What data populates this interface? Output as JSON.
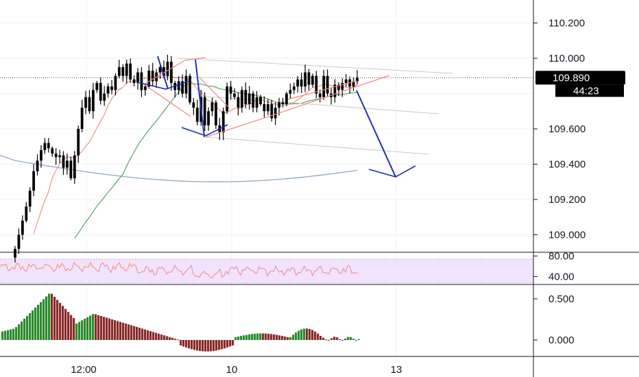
{
  "colors": {
    "background": "#ffffff",
    "grid": "#eef0f3",
    "axis_line": "#131722",
    "candle": "#000000",
    "sma_red": "#f08a7a",
    "sma_green": "#4c9a5c",
    "sma_blue": "#8fa7c8",
    "drawing_blue": "#1b2fae",
    "trend_red": "#f08a7a",
    "channel_gray": "#c9c9c9",
    "rsi_band": "#f1e3fb",
    "rsi_line": "#f08a7a",
    "macd_up": "#2a8a2a",
    "macd_down": "#8a2a2a",
    "price_badge": "#000000"
  },
  "chart_data": [
    {
      "type": "candlestick",
      "panel": "main",
      "y_ticks": [
        "110.200",
        "110.000",
        "109.600",
        "109.400",
        "109.200",
        "109.000"
      ],
      "y_tick_values": [
        110.2,
        110.0,
        109.6,
        109.4,
        109.2,
        109.0
      ],
      "ylim": [
        108.9,
        110.3
      ],
      "x_ticks": [
        "12:00",
        "10",
        "13"
      ],
      "last_price": "109.890",
      "countdown": "44:23",
      "grid": true,
      "close": [
        108.92,
        109.0,
        109.08,
        109.16,
        109.25,
        109.36,
        109.42,
        109.48,
        109.52,
        109.49,
        109.46,
        109.44,
        109.45,
        109.38,
        109.42,
        109.32,
        109.45,
        109.6,
        109.72,
        109.78,
        109.7,
        109.82,
        109.86,
        109.76,
        109.8,
        109.84,
        109.82,
        109.9,
        109.95,
        109.9,
        109.97,
        109.88,
        109.86,
        109.92,
        109.82,
        109.84,
        109.93,
        109.87,
        109.92,
        109.95,
        109.9,
        109.98,
        109.86,
        109.82,
        109.87,
        109.8,
        109.9,
        109.75,
        109.72,
        109.64,
        109.78,
        109.62,
        109.7,
        109.75,
        109.62,
        109.58,
        109.7,
        109.84,
        109.8,
        109.78,
        109.72,
        109.82,
        109.74,
        109.8,
        109.72,
        109.78,
        109.74,
        109.7,
        109.74,
        109.66,
        109.72,
        109.75,
        109.74,
        109.8,
        109.82,
        109.84,
        109.88,
        109.84,
        109.92,
        109.85,
        109.9,
        109.8,
        109.78,
        109.9,
        109.8,
        109.78,
        109.85,
        109.82,
        109.86,
        109.88,
        109.84,
        109.87,
        109.89
      ]
    },
    {
      "type": "line",
      "panel": "rsi",
      "y_ticks": [
        "80.00",
        "40.00"
      ],
      "y_tick_values": [
        80,
        40
      ],
      "ylim": [
        22,
        98
      ],
      "band": [
        30,
        70
      ]
    },
    {
      "type": "bar",
      "panel": "macd",
      "y_ticks": [
        "0.500",
        "0.000"
      ],
      "y_tick_values": [
        0.5,
        0.0
      ],
      "ylim": [
        -0.18,
        0.62
      ]
    }
  ]
}
